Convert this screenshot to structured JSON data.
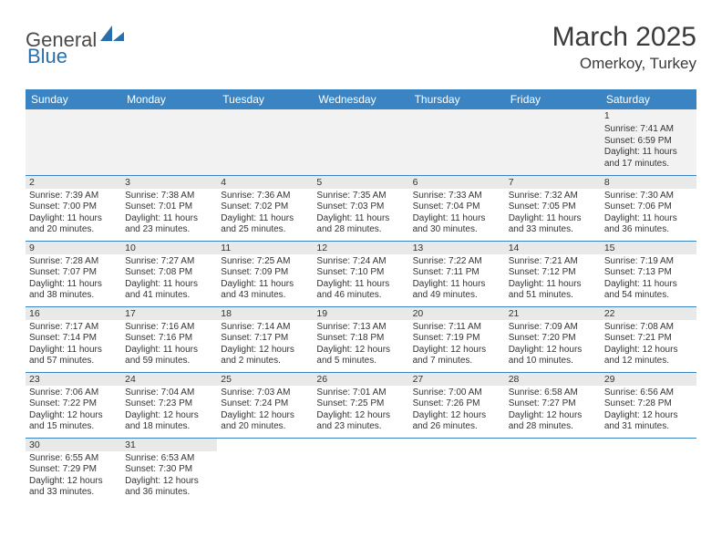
{
  "brand": {
    "part1": "General",
    "part2": "Blue"
  },
  "title": "March 2025",
  "location": "Omerkoy, Turkey",
  "colors": {
    "header_bg": "#3b84c4",
    "header_text": "#ffffff",
    "cell_border": "#3b84c4",
    "daynum_bg": "#e9e9e9",
    "empty_bg": "#f2f2f2",
    "text": "#333333",
    "brand_gray": "#4a4a4a",
    "brand_blue": "#2a6faa"
  },
  "weekdays": [
    "Sunday",
    "Monday",
    "Tuesday",
    "Wednesday",
    "Thursday",
    "Friday",
    "Saturday"
  ],
  "weeks": [
    [
      null,
      null,
      null,
      null,
      null,
      null,
      {
        "n": "1",
        "sr": "Sunrise: 7:41 AM",
        "ss": "Sunset: 6:59 PM",
        "dl": "Daylight: 11 hours and 17 minutes."
      }
    ],
    [
      {
        "n": "2",
        "sr": "Sunrise: 7:39 AM",
        "ss": "Sunset: 7:00 PM",
        "dl": "Daylight: 11 hours and 20 minutes."
      },
      {
        "n": "3",
        "sr": "Sunrise: 7:38 AM",
        "ss": "Sunset: 7:01 PM",
        "dl": "Daylight: 11 hours and 23 minutes."
      },
      {
        "n": "4",
        "sr": "Sunrise: 7:36 AM",
        "ss": "Sunset: 7:02 PM",
        "dl": "Daylight: 11 hours and 25 minutes."
      },
      {
        "n": "5",
        "sr": "Sunrise: 7:35 AM",
        "ss": "Sunset: 7:03 PM",
        "dl": "Daylight: 11 hours and 28 minutes."
      },
      {
        "n": "6",
        "sr": "Sunrise: 7:33 AM",
        "ss": "Sunset: 7:04 PM",
        "dl": "Daylight: 11 hours and 30 minutes."
      },
      {
        "n": "7",
        "sr": "Sunrise: 7:32 AM",
        "ss": "Sunset: 7:05 PM",
        "dl": "Daylight: 11 hours and 33 minutes."
      },
      {
        "n": "8",
        "sr": "Sunrise: 7:30 AM",
        "ss": "Sunset: 7:06 PM",
        "dl": "Daylight: 11 hours and 36 minutes."
      }
    ],
    [
      {
        "n": "9",
        "sr": "Sunrise: 7:28 AM",
        "ss": "Sunset: 7:07 PM",
        "dl": "Daylight: 11 hours and 38 minutes."
      },
      {
        "n": "10",
        "sr": "Sunrise: 7:27 AM",
        "ss": "Sunset: 7:08 PM",
        "dl": "Daylight: 11 hours and 41 minutes."
      },
      {
        "n": "11",
        "sr": "Sunrise: 7:25 AM",
        "ss": "Sunset: 7:09 PM",
        "dl": "Daylight: 11 hours and 43 minutes."
      },
      {
        "n": "12",
        "sr": "Sunrise: 7:24 AM",
        "ss": "Sunset: 7:10 PM",
        "dl": "Daylight: 11 hours and 46 minutes."
      },
      {
        "n": "13",
        "sr": "Sunrise: 7:22 AM",
        "ss": "Sunset: 7:11 PM",
        "dl": "Daylight: 11 hours and 49 minutes."
      },
      {
        "n": "14",
        "sr": "Sunrise: 7:21 AM",
        "ss": "Sunset: 7:12 PM",
        "dl": "Daylight: 11 hours and 51 minutes."
      },
      {
        "n": "15",
        "sr": "Sunrise: 7:19 AM",
        "ss": "Sunset: 7:13 PM",
        "dl": "Daylight: 11 hours and 54 minutes."
      }
    ],
    [
      {
        "n": "16",
        "sr": "Sunrise: 7:17 AM",
        "ss": "Sunset: 7:14 PM",
        "dl": "Daylight: 11 hours and 57 minutes."
      },
      {
        "n": "17",
        "sr": "Sunrise: 7:16 AM",
        "ss": "Sunset: 7:16 PM",
        "dl": "Daylight: 11 hours and 59 minutes."
      },
      {
        "n": "18",
        "sr": "Sunrise: 7:14 AM",
        "ss": "Sunset: 7:17 PM",
        "dl": "Daylight: 12 hours and 2 minutes."
      },
      {
        "n": "19",
        "sr": "Sunrise: 7:13 AM",
        "ss": "Sunset: 7:18 PM",
        "dl": "Daylight: 12 hours and 5 minutes."
      },
      {
        "n": "20",
        "sr": "Sunrise: 7:11 AM",
        "ss": "Sunset: 7:19 PM",
        "dl": "Daylight: 12 hours and 7 minutes."
      },
      {
        "n": "21",
        "sr": "Sunrise: 7:09 AM",
        "ss": "Sunset: 7:20 PM",
        "dl": "Daylight: 12 hours and 10 minutes."
      },
      {
        "n": "22",
        "sr": "Sunrise: 7:08 AM",
        "ss": "Sunset: 7:21 PM",
        "dl": "Daylight: 12 hours and 12 minutes."
      }
    ],
    [
      {
        "n": "23",
        "sr": "Sunrise: 7:06 AM",
        "ss": "Sunset: 7:22 PM",
        "dl": "Daylight: 12 hours and 15 minutes."
      },
      {
        "n": "24",
        "sr": "Sunrise: 7:04 AM",
        "ss": "Sunset: 7:23 PM",
        "dl": "Daylight: 12 hours and 18 minutes."
      },
      {
        "n": "25",
        "sr": "Sunrise: 7:03 AM",
        "ss": "Sunset: 7:24 PM",
        "dl": "Daylight: 12 hours and 20 minutes."
      },
      {
        "n": "26",
        "sr": "Sunrise: 7:01 AM",
        "ss": "Sunset: 7:25 PM",
        "dl": "Daylight: 12 hours and 23 minutes."
      },
      {
        "n": "27",
        "sr": "Sunrise: 7:00 AM",
        "ss": "Sunset: 7:26 PM",
        "dl": "Daylight: 12 hours and 26 minutes."
      },
      {
        "n": "28",
        "sr": "Sunrise: 6:58 AM",
        "ss": "Sunset: 7:27 PM",
        "dl": "Daylight: 12 hours and 28 minutes."
      },
      {
        "n": "29",
        "sr": "Sunrise: 6:56 AM",
        "ss": "Sunset: 7:28 PM",
        "dl": "Daylight: 12 hours and 31 minutes."
      }
    ],
    [
      {
        "n": "30",
        "sr": "Sunrise: 6:55 AM",
        "ss": "Sunset: 7:29 PM",
        "dl": "Daylight: 12 hours and 33 minutes."
      },
      {
        "n": "31",
        "sr": "Sunrise: 6:53 AM",
        "ss": "Sunset: 7:30 PM",
        "dl": "Daylight: 12 hours and 36 minutes."
      },
      null,
      null,
      null,
      null,
      null
    ]
  ]
}
